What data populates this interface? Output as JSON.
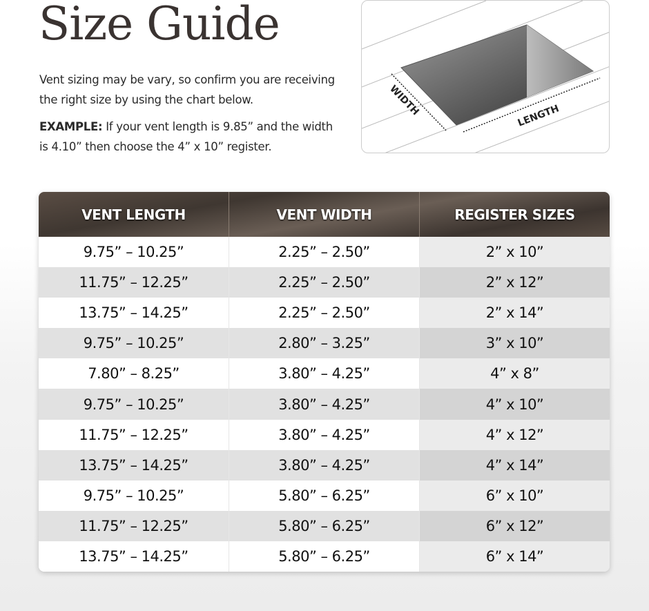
{
  "title": "Size Guide",
  "intro": "Vent sizing may be vary, so confirm you are receiving the right size by using the chart below.",
  "example_label": "EXAMPLE:",
  "example_text": " If your vent length is 9.85” and the width is 4.10” then choose the 4” x 10” register.",
  "diagram": {
    "width_label": "WIDTH",
    "length_label": "LENGTH"
  },
  "table": {
    "headers": [
      "VENT LENGTH",
      "VENT WIDTH",
      "REGISTER SIZES"
    ],
    "rows": [
      [
        "9.75” – 10.25”",
        "2.25” – 2.50”",
        "2” x 10”"
      ],
      [
        "11.75” – 12.25”",
        "2.25” – 2.50”",
        "2” x 12”"
      ],
      [
        "13.75” – 14.25”",
        "2.25” – 2.50”",
        "2” x 14”"
      ],
      [
        "9.75” – 10.25”",
        "2.80” – 3.25”",
        "3” x 10”"
      ],
      [
        "7.80” – 8.25”",
        "3.80” – 4.25”",
        "4” x 8”"
      ],
      [
        "9.75” – 10.25”",
        "3.80” – 4.25”",
        "4” x 10”"
      ],
      [
        "11.75” – 12.25”",
        "3.80” – 4.25”",
        "4” x 12”"
      ],
      [
        "13.75” – 14.25”",
        "3.80” – 4.25”",
        "4” x 14”"
      ],
      [
        "9.75” – 10.25”",
        "5.80” – 6.25”",
        "6” x 10”"
      ],
      [
        "11.75” – 12.25”",
        "5.80” – 6.25”",
        "6” x 12”"
      ],
      [
        "13.75” – 14.25”",
        "5.80” – 6.25”",
        "6” x 14”"
      ]
    ]
  }
}
